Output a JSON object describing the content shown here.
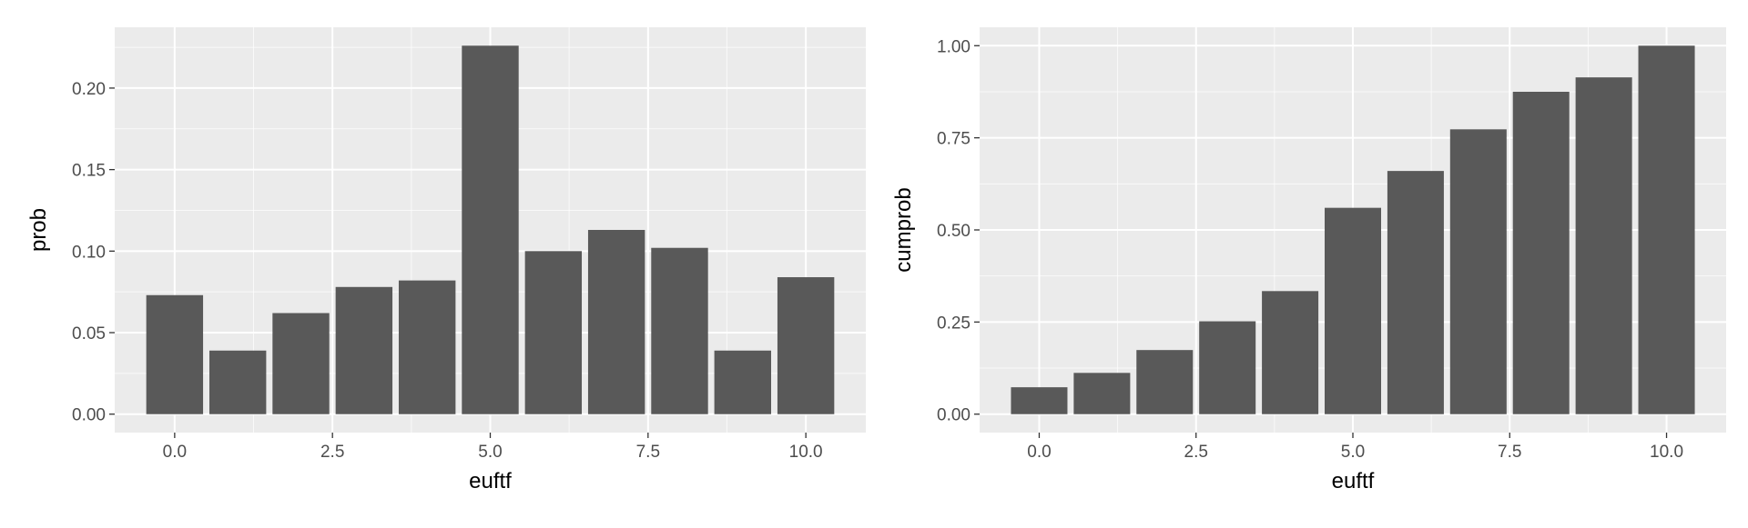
{
  "chart_data": [
    {
      "type": "bar",
      "xlabel": "euftf",
      "ylabel": "prob",
      "x": [
        0,
        1,
        2,
        3,
        4,
        5,
        6,
        7,
        8,
        9,
        10
      ],
      "values": [
        0.073,
        0.039,
        0.062,
        0.078,
        0.082,
        0.226,
        0.1,
        0.113,
        0.102,
        0.039,
        0.084
      ],
      "xlim": [
        -0.95,
        10.95
      ],
      "ylim": [
        -0.0113,
        0.2373
      ],
      "xticks": [
        0,
        2.5,
        5,
        7.5,
        10
      ],
      "xtick_labels": [
        "0.0",
        "2.5",
        "5.0",
        "7.5",
        "10.0"
      ],
      "yticks": [
        0,
        0.05,
        0.1,
        0.15,
        0.2
      ],
      "ytick_labels": [
        "0.00",
        "0.05",
        "0.10",
        "0.15",
        "0.20"
      ],
      "bar_color": "#595959",
      "grid": true
    },
    {
      "type": "bar",
      "xlabel": "euftf",
      "ylabel": "cumprob",
      "x": [
        0,
        1,
        2,
        3,
        4,
        5,
        6,
        7,
        8,
        9,
        10
      ],
      "values": [
        0.073,
        0.112,
        0.174,
        0.252,
        0.334,
        0.56,
        0.66,
        0.773,
        0.875,
        0.914,
        1.0
      ],
      "xlim": [
        -0.95,
        10.95
      ],
      "ylim": [
        -0.05,
        1.05
      ],
      "xticks": [
        0,
        2.5,
        5,
        7.5,
        10
      ],
      "xtick_labels": [
        "0.0",
        "2.5",
        "5.0",
        "7.5",
        "10.0"
      ],
      "yticks": [
        0,
        0.25,
        0.5,
        0.75,
        1.0
      ],
      "ytick_labels": [
        "0.00",
        "0.25",
        "0.50",
        "0.75",
        "1.00"
      ],
      "bar_color": "#595959",
      "grid": true
    }
  ]
}
